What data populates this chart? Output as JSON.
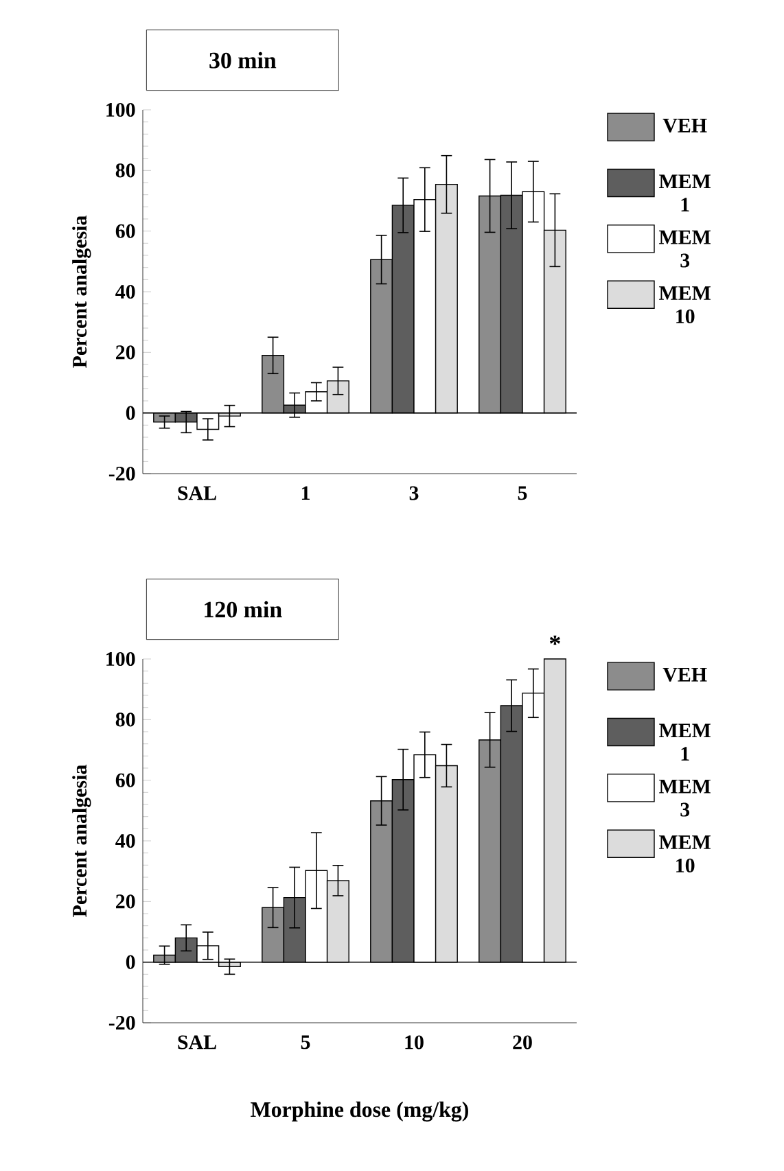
{
  "chart_data": [
    {
      "type": "bar",
      "title": "30 min",
      "ylabel": "Percent analgesia",
      "categories": [
        "SAL",
        "1",
        "3",
        "5"
      ],
      "series": [
        {
          "name": "VEH",
          "color": "#8c8c8c",
          "values": [
            -3,
            19,
            50.6,
            71.6
          ],
          "errors": [
            2,
            6,
            8,
            12
          ]
        },
        {
          "name": "MEM 1",
          "color": "#5e5e5e",
          "values": [
            -3,
            2.6,
            68.5,
            71.8
          ],
          "errors": [
            3.5,
            4,
            9,
            11
          ]
        },
        {
          "name": "MEM 3",
          "color": "#ffffff",
          "values": [
            -5.4,
            7,
            70.4,
            73
          ],
          "errors": [
            3.5,
            3,
            10.5,
            10
          ]
        },
        {
          "name": "MEM 10",
          "color": "#dcdcdc",
          "values": [
            -1,
            10.6,
            75.4,
            60.3
          ],
          "errors": [
            3.5,
            4.5,
            9.5,
            12
          ]
        }
      ],
      "ylim": [
        -20,
        100
      ],
      "yticks": [
        -20,
        0,
        20,
        40,
        60,
        80,
        100
      ],
      "legend": "right",
      "ref_lines": [
        {
          "axis": "y",
          "value": 0
        }
      ]
    },
    {
      "type": "bar",
      "title": "120 min",
      "ylabel": "Percent analgesia",
      "xlabel": "Morphine dose (mg/kg)",
      "categories": [
        "SAL",
        "5",
        "10",
        "20"
      ],
      "series": [
        {
          "name": "VEH",
          "color": "#8c8c8c",
          "values": [
            2.3,
            18,
            53.2,
            73.3
          ],
          "errors": [
            3,
            6.6,
            8,
            9
          ]
        },
        {
          "name": "MEM 1",
          "color": "#5e5e5e",
          "values": [
            8,
            21.3,
            60.2,
            84.6
          ],
          "errors": [
            4.3,
            10,
            10,
            8.5
          ]
        },
        {
          "name": "MEM 3",
          "color": "#ffffff",
          "values": [
            5.4,
            30.2,
            68.4,
            88.7
          ],
          "errors": [
            4.5,
            12.5,
            7.5,
            8
          ]
        },
        {
          "name": "MEM 10",
          "color": "#dcdcdc",
          "values": [
            -1.5,
            26.9,
            64.8,
            100
          ],
          "errors": [
            2.5,
            5,
            7,
            null
          ]
        }
      ],
      "ylim": [
        -20,
        100
      ],
      "yticks": [
        -20,
        0,
        20,
        40,
        60,
        80,
        100
      ],
      "legend": "right",
      "ref_lines": [
        {
          "axis": "y",
          "value": 0
        }
      ],
      "annotations": [
        "*"
      ]
    }
  ]
}
